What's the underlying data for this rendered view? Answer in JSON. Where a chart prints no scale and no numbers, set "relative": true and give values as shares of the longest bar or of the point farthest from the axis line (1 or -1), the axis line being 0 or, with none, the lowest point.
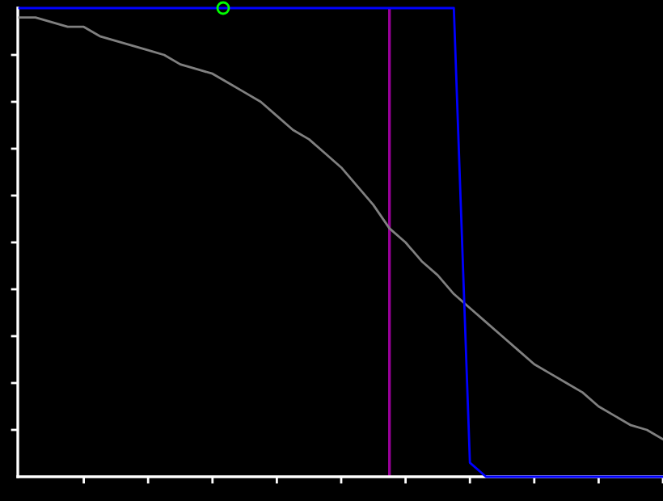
{
  "chart_data": {
    "type": "line",
    "relative": true,
    "grid": false,
    "legend": false,
    "marker": "none",
    "line_style": "solid",
    "categories": [
      null,
      null,
      null,
      null,
      null,
      null,
      null,
      null,
      null,
      null,
      null,
      null,
      null,
      null,
      null,
      null,
      null,
      null,
      null,
      null,
      null,
      null,
      null,
      null,
      null,
      null,
      null,
      null,
      null,
      null,
      null,
      null,
      null,
      null,
      null,
      null,
      null,
      null,
      null,
      null,
      null
    ],
    "series": [
      {
        "color": "#808080",
        "values": [
          0.98,
          0.98,
          0.97,
          0.96,
          0.96,
          0.94,
          0.93,
          0.92,
          0.91,
          0.9,
          0.88,
          0.87,
          0.86,
          0.84,
          0.82,
          0.8,
          0.77,
          0.74,
          0.72,
          0.69,
          0.66,
          0.62,
          0.58,
          0.53,
          0.5,
          0.46,
          0.43,
          0.39,
          0.36,
          0.33,
          0.3,
          0.27,
          0.24,
          0.22,
          0.2,
          0.18,
          0.15,
          0.13,
          0.11,
          0.1,
          0.08
        ]
      },
      {
        "color": "#0000ff",
        "values": [
          1,
          1,
          1,
          1,
          1,
          1,
          1,
          1,
          1,
          1,
          1,
          1,
          1,
          1,
          1,
          1,
          1,
          1,
          1,
          1,
          1,
          1,
          1,
          1,
          1,
          1,
          1,
          1,
          0.03,
          0,
          0,
          0,
          0,
          0,
          0,
          0,
          0,
          0,
          0,
          0,
          0
        ]
      }
    ]
  }
}
